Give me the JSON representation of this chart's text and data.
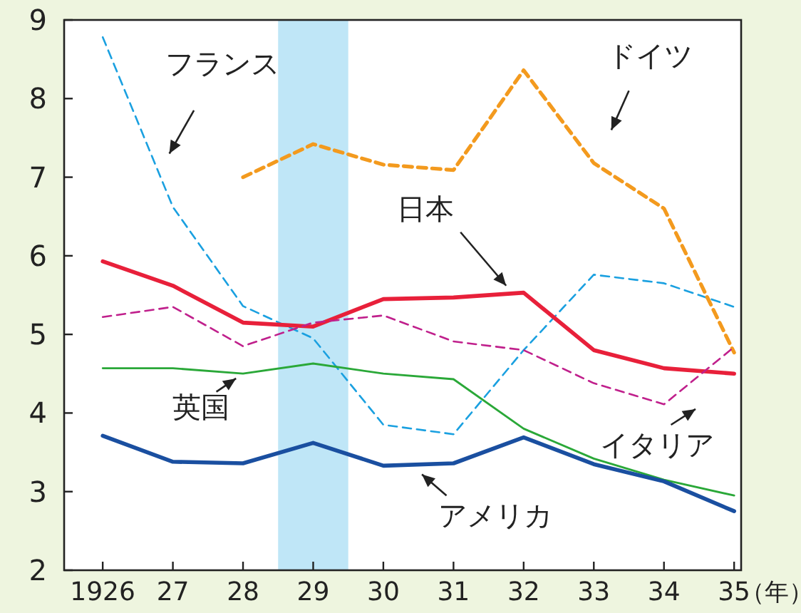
{
  "chart_data": {
    "type": "line",
    "xlabel": "（年）",
    "x": [
      1926,
      1927,
      1928,
      1929,
      1930,
      1931,
      1932,
      1933,
      1934,
      1935
    ],
    "xlim": [
      1925.45,
      1935.1
    ],
    "xticks": [
      {
        "value": 1926,
        "label": "1926"
      },
      {
        "value": 1927,
        "label": "27"
      },
      {
        "value": 1928,
        "label": "28"
      },
      {
        "value": 1929,
        "label": "29"
      },
      {
        "value": 1930,
        "label": "30"
      },
      {
        "value": 1931,
        "label": "31"
      },
      {
        "value": 1932,
        "label": "32"
      },
      {
        "value": 1933,
        "label": "33"
      },
      {
        "value": 1934,
        "label": "34"
      },
      {
        "value": 1935,
        "label": "35"
      }
    ],
    "ylim": [
      2,
      9
    ],
    "yticks": [
      2,
      3,
      4,
      5,
      6,
      7,
      8,
      9
    ],
    "grid": false,
    "bands": [
      {
        "axis": "x",
        "from": 1928.5,
        "to": 1929.5,
        "color": "#bfe6f7"
      }
    ],
    "series": [
      {
        "name": "フランス",
        "color": "#1aa0e0",
        "line_style": "dashed",
        "values": [
          8.78,
          6.62,
          5.36,
          4.95,
          3.85,
          3.73,
          4.8,
          5.76,
          5.65,
          5.35
        ]
      },
      {
        "name": "ドイツ",
        "color": "#f39a1e",
        "line_style": "dashed",
        "values": [
          null,
          null,
          7.0,
          7.42,
          7.16,
          7.09,
          8.36,
          7.18,
          6.6,
          4.77
        ]
      },
      {
        "name": "日本",
        "color": "#e8203a",
        "line_style": "solid",
        "values": [
          5.93,
          5.62,
          5.15,
          5.1,
          5.45,
          5.47,
          5.53,
          4.8,
          4.57,
          4.5
        ]
      },
      {
        "name": "イタリア",
        "color": "#c0208c",
        "line_style": "dashed",
        "values": [
          5.22,
          5.35,
          4.85,
          5.15,
          5.24,
          4.91,
          4.8,
          4.38,
          4.11,
          4.84
        ]
      },
      {
        "name": "英国",
        "color": "#2aa838",
        "line_style": "solid",
        "values": [
          4.57,
          4.57,
          4.5,
          4.63,
          4.5,
          4.43,
          3.8,
          3.42,
          3.15,
          2.95
        ]
      },
      {
        "name": "アメリカ",
        "color": "#1a4fa0",
        "line_style": "solid",
        "values": [
          3.71,
          3.38,
          3.36,
          3.62,
          3.33,
          3.36,
          3.69,
          3.35,
          3.13,
          2.75
        ]
      }
    ]
  }
}
